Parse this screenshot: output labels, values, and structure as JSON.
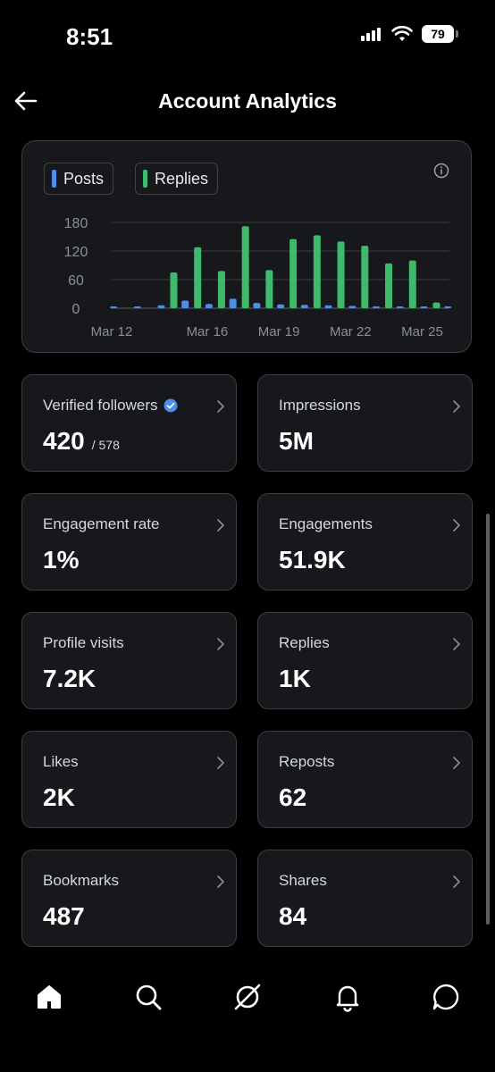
{
  "status_bar": {
    "time": "8:51",
    "battery": "79"
  },
  "header": {
    "title": "Account Analytics"
  },
  "legend": {
    "posts": "Posts",
    "replies": "Replies"
  },
  "colors": {
    "posts": "#4c8ee8",
    "replies": "#3fb96a",
    "verified": "#4c8ee8"
  },
  "chart_data": {
    "type": "bar",
    "x_tick_labels": [
      "Mar 12",
      "Mar 16",
      "Mar 19",
      "Mar 22",
      "Mar 25"
    ],
    "y_tick_labels": [
      "180",
      "120",
      "60",
      "0"
    ],
    "ylim": [
      0,
      180
    ],
    "days": [
      "Mar 12",
      "Mar 13",
      "Mar 14",
      "Mar 15",
      "Mar 16",
      "Mar 17",
      "Mar 18",
      "Mar 19",
      "Mar 20",
      "Mar 21",
      "Mar 22",
      "Mar 23",
      "Mar 24",
      "Mar 25",
      "Mar 26"
    ],
    "series": [
      {
        "name": "Posts",
        "values": [
          1,
          2,
          6,
          16,
          9,
          20,
          11,
          8,
          7,
          6,
          5,
          3,
          2,
          3,
          0
        ]
      },
      {
        "name": "Replies",
        "values": [
          0,
          0,
          75,
          128,
          78,
          172,
          80,
          145,
          153,
          140,
          131,
          94,
          100,
          12,
          0
        ]
      }
    ]
  },
  "cards": [
    {
      "label": "Verified followers",
      "value": "420",
      "sub": "/ 578",
      "verified": true
    },
    {
      "label": "Impressions",
      "value": "5M"
    },
    {
      "label": "Engagement rate",
      "value": "1%"
    },
    {
      "label": "Engagements",
      "value": "51.9K"
    },
    {
      "label": "Profile visits",
      "value": "7.2K"
    },
    {
      "label": "Replies",
      "value": "1K"
    },
    {
      "label": "Likes",
      "value": "2K"
    },
    {
      "label": "Reposts",
      "value": "62"
    },
    {
      "label": "Bookmarks",
      "value": "487"
    },
    {
      "label": "Shares",
      "value": "84"
    }
  ],
  "nav": [
    {
      "icon": "home-icon"
    },
    {
      "icon": "search-icon"
    },
    {
      "icon": "grok-icon"
    },
    {
      "icon": "notifications-icon"
    },
    {
      "icon": "messages-icon"
    }
  ]
}
